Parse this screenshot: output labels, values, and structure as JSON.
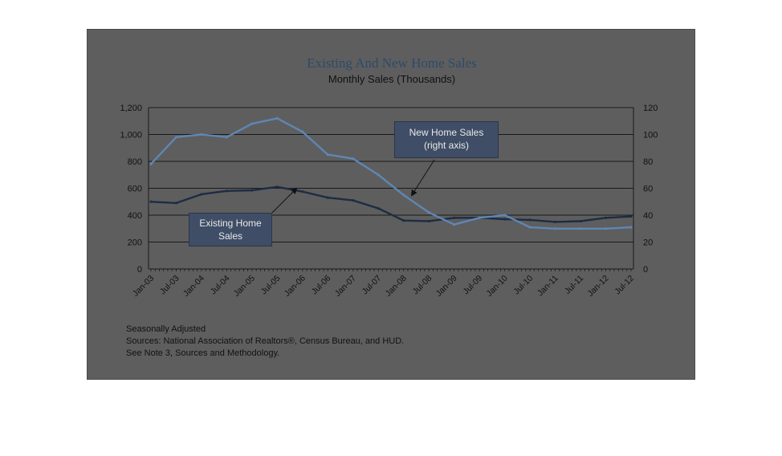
{
  "chart_data": {
    "type": "line",
    "title": "Existing And New Home Sales",
    "subtitle": "Monthly Sales (Thousands)",
    "x_tick_labels": [
      "Jan-03",
      "Jul-03",
      "Jan-04",
      "Jul-04",
      "Jan-05",
      "Jul-05",
      "Jan-06",
      "Jul-06",
      "Jan-07",
      "Jul-07",
      "Jan-08",
      "Jul-08",
      "Jan-09",
      "Jul-09",
      "Jan-10",
      "Jul-10",
      "Jan-11",
      "Jul-11",
      "Jan-12",
      "Jul-12"
    ],
    "y_left": {
      "ticks": [
        "0",
        "200",
        "400",
        "600",
        "800",
        "1,000",
        "1,200"
      ],
      "range": [
        0,
        1200
      ]
    },
    "y_right": {
      "ticks": [
        "0",
        "20",
        "40",
        "60",
        "80",
        "100",
        "120"
      ],
      "range": [
        0,
        120
      ]
    },
    "grid": true,
    "series": [
      {
        "name": "Existing Home Sales",
        "axis": "left",
        "color": "#1e2c44",
        "x": [
          "Jan-03",
          "Jul-03",
          "Jan-04",
          "Jul-04",
          "Jan-05",
          "Jul-05",
          "Jan-06",
          "Jul-06",
          "Jan-07",
          "Jul-07",
          "Jan-08",
          "Jul-08",
          "Jan-09",
          "Jul-09",
          "Jan-10",
          "Jul-10",
          "Jan-11",
          "Jul-11",
          "Jan-12",
          "Jul-12"
        ],
        "values": [
          500,
          490,
          555,
          580,
          585,
          610,
          575,
          530,
          510,
          450,
          360,
          355,
          380,
          380,
          370,
          365,
          350,
          355,
          380,
          390
        ]
      },
      {
        "name": "New Home Sales (right axis)",
        "axis": "right",
        "color": "#5f86b4",
        "x": [
          "Jan-03",
          "Jul-03",
          "Jan-04",
          "Jul-04",
          "Jan-05",
          "Jul-05",
          "Jan-06",
          "Jul-06",
          "Jan-07",
          "Jul-07",
          "Jan-08",
          "Jul-08",
          "Jan-09",
          "Jul-09",
          "Jan-10",
          "Jul-10",
          "Jan-11",
          "Jul-11",
          "Jan-12",
          "Jul-12"
        ],
        "values": [
          78,
          98,
          100,
          98,
          108,
          112,
          102,
          85,
          82,
          70,
          55,
          42,
          33,
          38,
          40,
          31,
          30,
          30,
          30,
          31
        ]
      }
    ]
  },
  "annotations": {
    "new_home": [
      "New Home Sales",
      "(right axis)"
    ],
    "existing_home": [
      "Existing Home",
      "Sales"
    ]
  },
  "notes": {
    "line1": "Seasonally Adjusted",
    "line2": "Sources:  National Association of Realtors®, Census Bureau, and HUD.",
    "line3": "See Note 3, Sources and Methodology."
  }
}
